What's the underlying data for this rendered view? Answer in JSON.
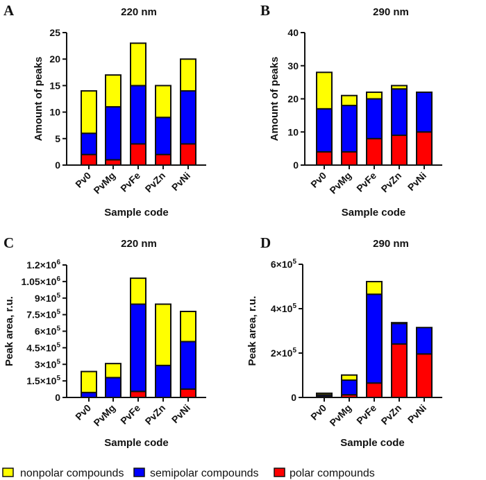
{
  "legend": [
    {
      "name": "nonpolar compounds",
      "color": "#ffff00"
    },
    {
      "name": "semipolar compounds",
      "color": "#0000ff"
    },
    {
      "name": "polar compounds",
      "color": "#ff0000"
    }
  ],
  "chart_data": [
    {
      "panel": "A",
      "type": "bar",
      "stacked": true,
      "title": "220 nm",
      "xlabel": "Sample code",
      "ylabel": "Amount of peaks",
      "categories": [
        "Pv0",
        "PvMg",
        "PvFe",
        "PvZn",
        "PvNi"
      ],
      "ylim": [
        0,
        25
      ],
      "yticks": [
        0,
        5,
        10,
        15,
        20,
        25
      ],
      "ytick_labels": [
        "0",
        "5",
        "10",
        "15",
        "20",
        "25"
      ],
      "series": [
        {
          "name": "polar compounds",
          "values": [
            2,
            1,
            4,
            2,
            4
          ]
        },
        {
          "name": "semipolar compounds",
          "values": [
            4,
            10,
            11,
            7,
            10
          ]
        },
        {
          "name": "nonpolar compounds",
          "values": [
            8,
            6,
            8,
            6,
            6
          ]
        }
      ]
    },
    {
      "panel": "B",
      "type": "bar",
      "stacked": true,
      "title": "290 nm",
      "xlabel": "Sample code",
      "ylabel": "Amount of peaks",
      "categories": [
        "Pv0",
        "PvMg",
        "PvFe",
        "PvZn",
        "PvNi"
      ],
      "ylim": [
        0,
        40
      ],
      "yticks": [
        0,
        10,
        20,
        30,
        40
      ],
      "ytick_labels": [
        "0",
        "10",
        "20",
        "30",
        "40"
      ],
      "series": [
        {
          "name": "polar compounds",
          "values": [
            4,
            4,
            8,
            9,
            10
          ]
        },
        {
          "name": "semipolar compounds",
          "values": [
            13,
            14,
            12,
            14,
            12
          ]
        },
        {
          "name": "nonpolar compounds",
          "values": [
            11,
            3,
            2,
            1,
            0
          ]
        }
      ]
    },
    {
      "panel": "C",
      "type": "bar",
      "stacked": true,
      "title": "220 nm",
      "xlabel": "Sample code",
      "ylabel": "Peak area, r.u.",
      "categories": [
        "Pv0",
        "PvMg",
        "PvFe",
        "PvZn",
        "PvNi"
      ],
      "ylim": [
        0,
        1200000
      ],
      "yticks": [
        0,
        150000,
        300000,
        450000,
        600000,
        750000,
        900000,
        1050000,
        1200000
      ],
      "ytick_labels": [
        [
          "0",
          ""
        ],
        [
          "1.5×10",
          "5"
        ],
        [
          "3×10",
          "5"
        ],
        [
          "4.5×10",
          "5"
        ],
        [
          "6×10",
          "5"
        ],
        [
          "7.5×10",
          "5"
        ],
        [
          "9×10",
          "5"
        ],
        [
          "1.05×10",
          "6"
        ],
        [
          "1.2×10",
          "6"
        ]
      ],
      "series": [
        {
          "name": "polar compounds",
          "values": [
            0,
            0,
            55000,
            0,
            76000
          ]
        },
        {
          "name": "semipolar compounds",
          "values": [
            45000,
            180000,
            790000,
            290000,
            430000
          ]
        },
        {
          "name": "nonpolar compounds",
          "values": [
            190000,
            127000,
            235000,
            555000,
            273000
          ]
        }
      ]
    },
    {
      "panel": "D",
      "type": "bar",
      "stacked": true,
      "title": "290 nm",
      "xlabel": "Sample code",
      "ylabel": "Peak area, r.u.",
      "categories": [
        "Pv0",
        "PvMg",
        "PvFe",
        "PvZn",
        "PvNi"
      ],
      "ylim": [
        0,
        600000
      ],
      "yticks": [
        0,
        200000,
        400000,
        600000
      ],
      "ytick_labels": [
        [
          "0",
          ""
        ],
        [
          "2×10",
          "5"
        ],
        [
          "4×10",
          "5"
        ],
        [
          "6×10",
          "5"
        ]
      ],
      "series": [
        {
          "name": "polar compounds",
          "values": [
            5000,
            12000,
            65000,
            241000,
            196000
          ]
        },
        {
          "name": "semipolar compounds",
          "values": [
            7000,
            66000,
            400000,
            92000,
            119000
          ]
        },
        {
          "name": "nonpolar compounds",
          "values": [
            7000,
            23000,
            57000,
            4000,
            0
          ]
        }
      ]
    }
  ]
}
